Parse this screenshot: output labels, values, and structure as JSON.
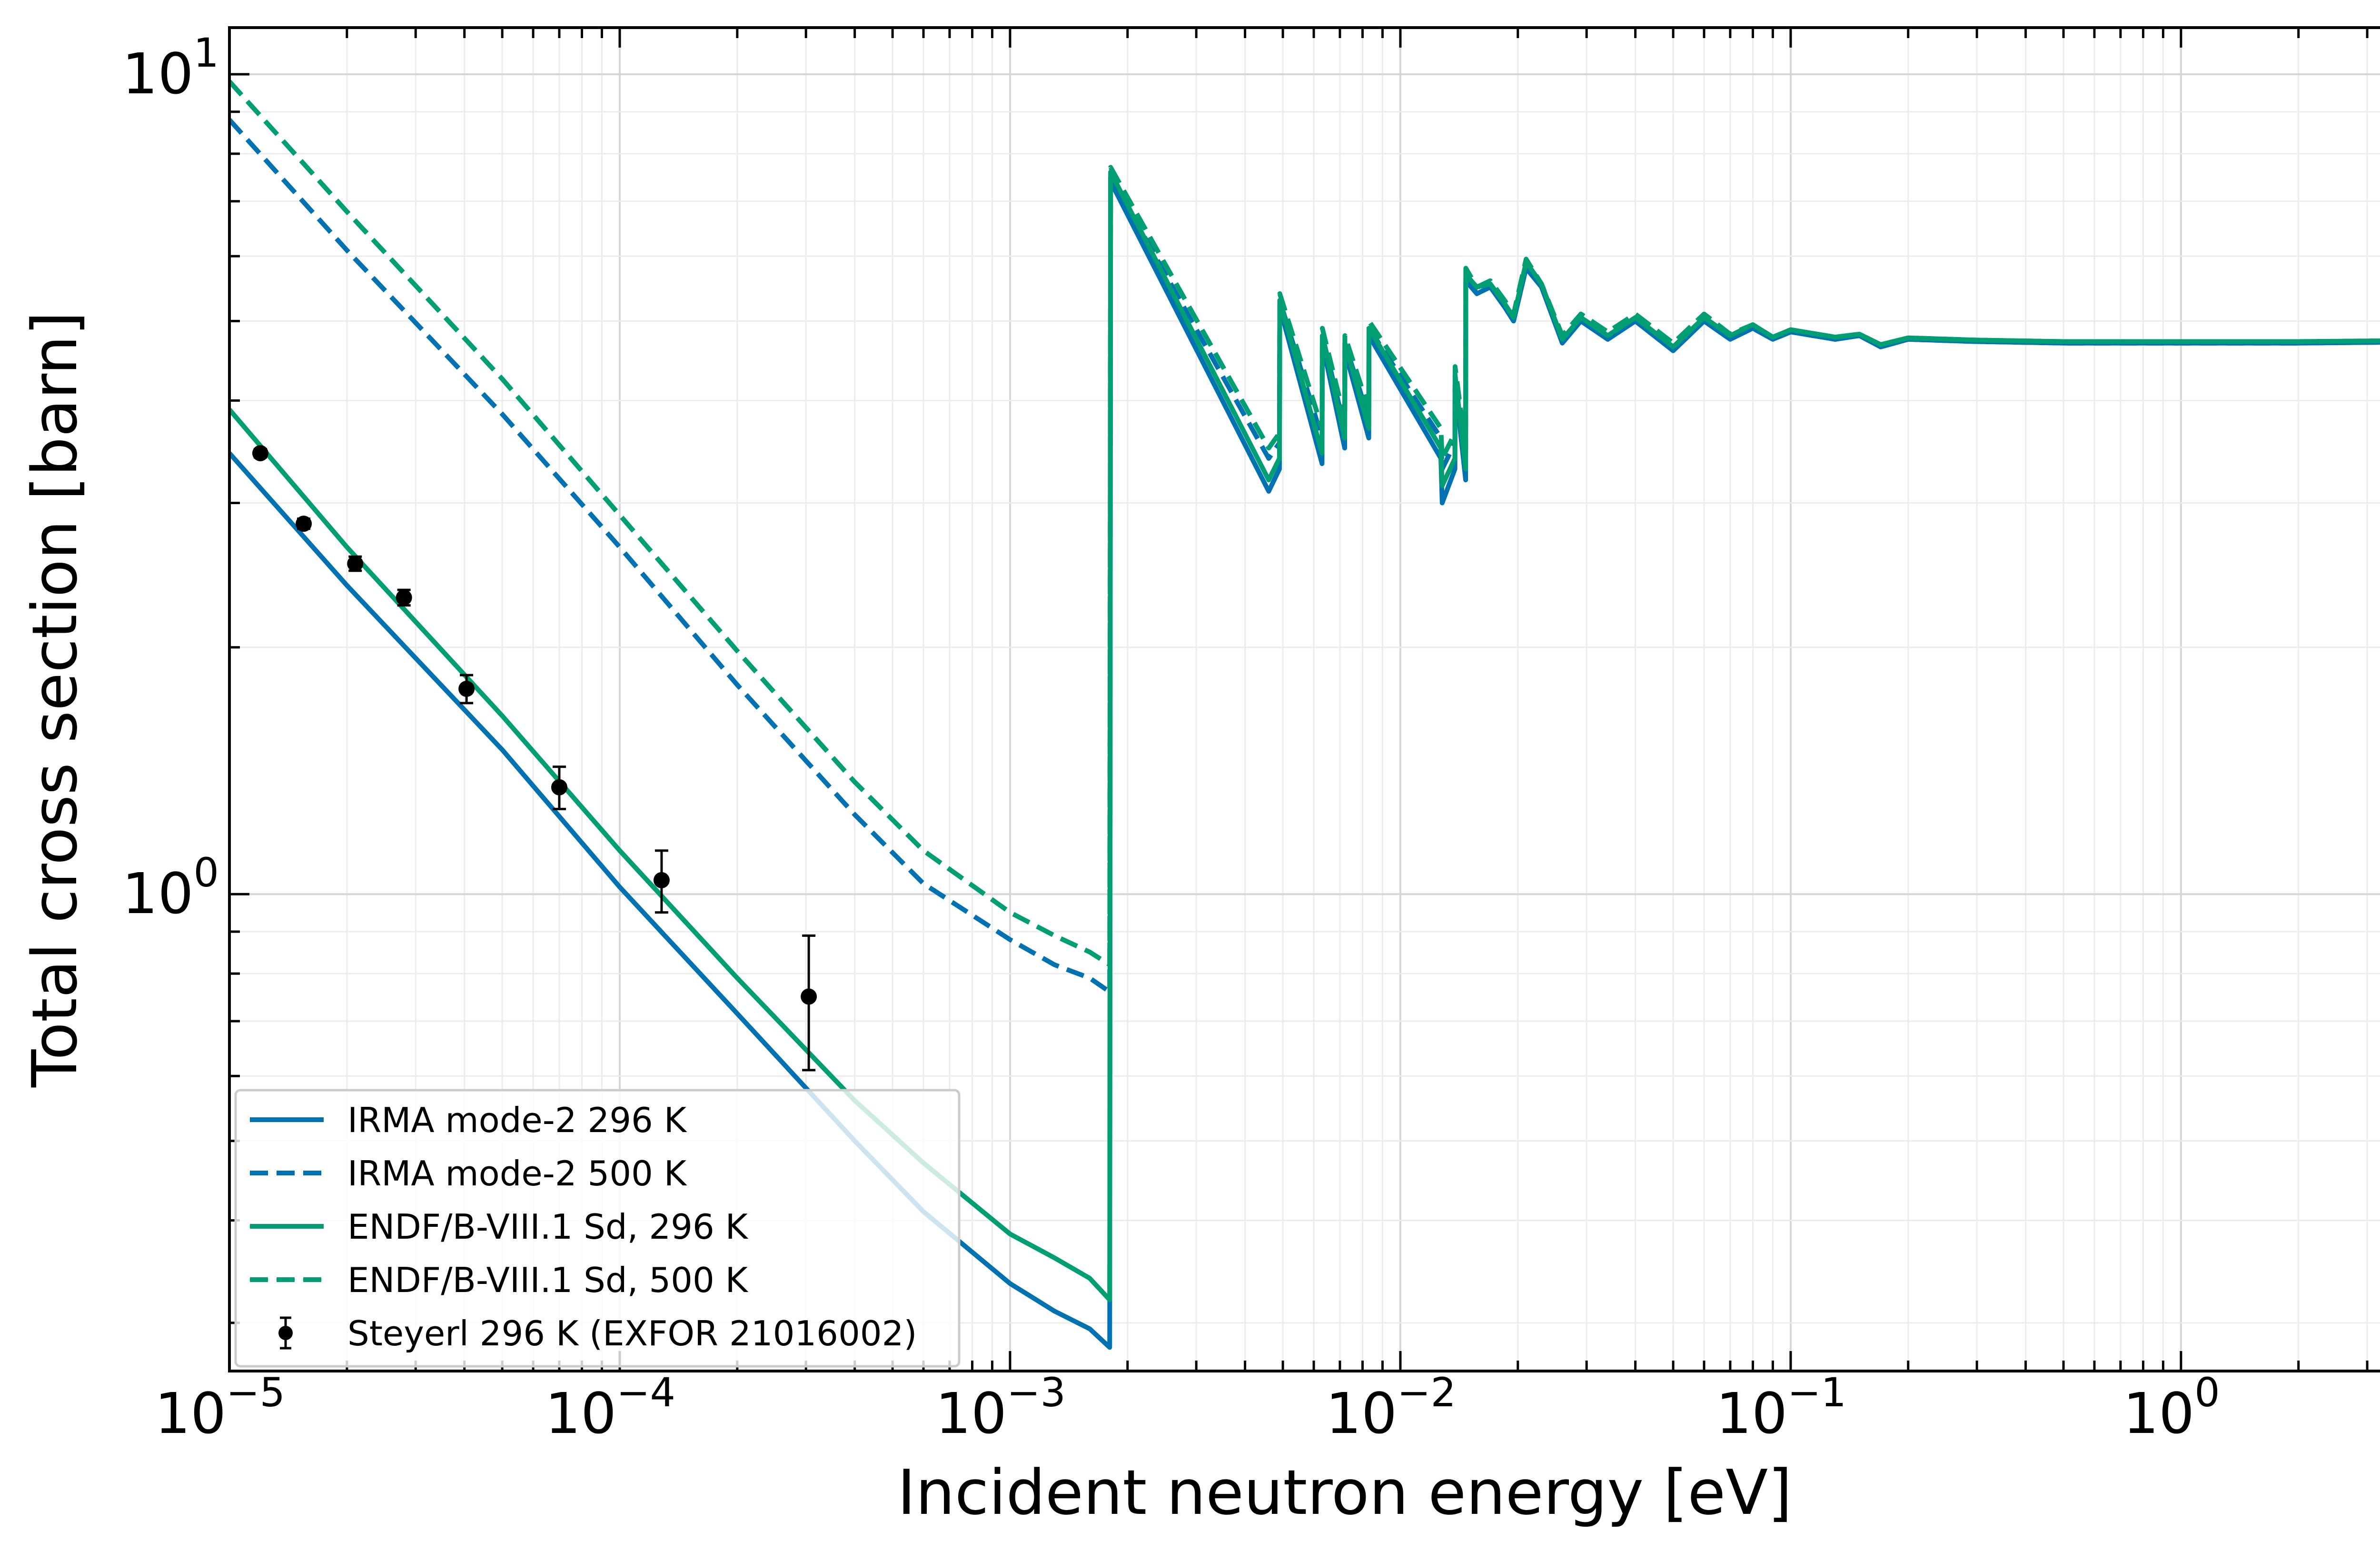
{
  "chart_data": {
    "type": "line",
    "title": "",
    "xlabel": "Incident neutron energy [eV]",
    "ylabel": "Total cross section [barn]",
    "xscale": "log",
    "yscale": "log",
    "xlim": [
      1e-05,
      5.2
    ],
    "ylim": [
      0.262,
      11.4
    ],
    "grid": "on (major and minor)",
    "legend_position": "lower-left",
    "x_ticks": [
      {
        "base": "10",
        "exp": "−5"
      },
      {
        "base": "10",
        "exp": "−4"
      },
      {
        "base": "10",
        "exp": "−3"
      },
      {
        "base": "10",
        "exp": "−2"
      },
      {
        "base": "10",
        "exp": "−1"
      },
      {
        "base": "10",
        "exp": "0"
      }
    ],
    "y_ticks": [
      {
        "base": "10",
        "exp": "0"
      },
      {
        "base": "10",
        "exp": "1"
      }
    ],
    "series": [
      {
        "name": "IRMA mode-2 296 K",
        "color": "#0072B2",
        "style": "solid",
        "x": [
          1e-05,
          2e-05,
          5e-05,
          0.0001,
          0.0002,
          0.0004,
          0.0006,
          0.001,
          0.0013,
          0.0016,
          0.0018,
          0.00181,
          0.0046,
          0.0049,
          0.00491,
          0.0063,
          0.00631,
          0.0072,
          0.00721,
          0.0083,
          0.00831,
          0.0127,
          0.0128,
          0.0138,
          0.01381,
          0.0147,
          0.01471,
          0.0157,
          0.017,
          0.0185,
          0.0195,
          0.021,
          0.023,
          0.026,
          0.029,
          0.034,
          0.04,
          0.05,
          0.06,
          0.07,
          0.08,
          0.09,
          0.1,
          0.13,
          0.15,
          0.17,
          0.2,
          0.3,
          0.5,
          1.0,
          2.0,
          5.2
        ],
        "y": [
          3.45,
          2.38,
          1.5,
          1.02,
          0.715,
          0.5,
          0.41,
          0.335,
          0.31,
          0.295,
          0.28,
          7.4,
          3.1,
          3.3,
          5.2,
          3.35,
          4.7,
          3.5,
          4.6,
          3.6,
          4.8,
          3.4,
          3.0,
          3.3,
          4.2,
          3.2,
          5.6,
          5.4,
          5.5,
          5.2,
          5.0,
          5.8,
          5.5,
          4.7,
          5.0,
          4.75,
          5.0,
          4.6,
          5.0,
          4.75,
          4.9,
          4.75,
          4.85,
          4.75,
          4.8,
          4.65,
          4.75,
          4.72,
          4.7,
          4.7,
          4.7,
          4.72
        ]
      },
      {
        "name": "IRMA mode-2 500 K",
        "color": "#0072B2",
        "style": "dashed",
        "x": [
          1e-05,
          2e-05,
          5e-05,
          0.0001,
          0.0002,
          0.0004,
          0.0006,
          0.001,
          0.0013,
          0.0016,
          0.0018,
          0.00181,
          0.0046,
          0.0049,
          0.00491,
          0.0063,
          0.00631,
          0.0072,
          0.00721,
          0.0083,
          0.00831,
          0.0127,
          0.0128,
          0.0138,
          0.01381,
          0.0147,
          0.01471,
          0.0157,
          0.017,
          0.0185,
          0.0195,
          0.021,
          0.023,
          0.026,
          0.029,
          0.034,
          0.04,
          0.05,
          0.06,
          0.07,
          0.08,
          0.09,
          0.1,
          0.13,
          0.15,
          0.17,
          0.2,
          0.3,
          0.5,
          1.0,
          2.0,
          5.2
        ],
        "y": [
          8.8,
          6.1,
          3.85,
          2.65,
          1.8,
          1.25,
          1.03,
          0.88,
          0.82,
          0.79,
          0.76,
          7.5,
          3.4,
          3.55,
          5.3,
          3.6,
          4.8,
          3.7,
          4.7,
          3.8,
          4.9,
          3.6,
          3.3,
          3.55,
          4.3,
          3.4,
          5.7,
          5.4,
          5.55,
          5.25,
          5.05,
          5.85,
          5.5,
          4.75,
          5.05,
          4.8,
          5.05,
          4.65,
          5.05,
          4.8,
          4.9,
          4.75,
          4.85,
          4.75,
          4.8,
          4.65,
          4.75,
          4.72,
          4.7,
          4.7,
          4.7,
          4.72
        ]
      },
      {
        "name": "ENDF/B-VIII.1 Sd, 296 K",
        "color": "#009E73",
        "style": "solid",
        "x": [
          1e-05,
          2e-05,
          5e-05,
          0.0001,
          0.0002,
          0.0004,
          0.0006,
          0.001,
          0.0013,
          0.0016,
          0.0018,
          0.00181,
          0.0046,
          0.0049,
          0.00491,
          0.0063,
          0.00631,
          0.0072,
          0.00721,
          0.0083,
          0.00831,
          0.0127,
          0.0128,
          0.0138,
          0.01381,
          0.0147,
          0.01471,
          0.0157,
          0.017,
          0.0185,
          0.0195,
          0.021,
          0.023,
          0.026,
          0.029,
          0.034,
          0.04,
          0.05,
          0.06,
          0.07,
          0.08,
          0.09,
          0.1,
          0.13,
          0.15,
          0.17,
          0.2,
          0.3,
          0.5,
          1.0,
          2.0,
          5.2
        ],
        "y": [
          3.9,
          2.65,
          1.65,
          1.13,
          0.79,
          0.56,
          0.47,
          0.385,
          0.36,
          0.34,
          0.32,
          7.6,
          3.2,
          3.4,
          5.3,
          3.45,
          4.8,
          3.6,
          4.7,
          3.7,
          4.9,
          3.5,
          3.15,
          3.4,
          4.3,
          3.3,
          5.7,
          5.5,
          5.55,
          5.25,
          5.05,
          5.9,
          5.55,
          4.75,
          5.05,
          4.8,
          5.05,
          4.65,
          5.05,
          4.8,
          4.95,
          4.78,
          4.88,
          4.78,
          4.82,
          4.68,
          4.77,
          4.74,
          4.72,
          4.72,
          4.72,
          4.74
        ]
      },
      {
        "name": "ENDF/B-VIII.1 Sd, 500 K",
        "color": "#009E73",
        "style": "dashed",
        "x": [
          1e-05,
          2e-05,
          5e-05,
          0.0001,
          0.0002,
          0.0004,
          0.0006,
          0.001,
          0.0013,
          0.0016,
          0.0018,
          0.00181,
          0.0046,
          0.0049,
          0.00491,
          0.0063,
          0.00631,
          0.0072,
          0.00721,
          0.0083,
          0.00831,
          0.0127,
          0.0128,
          0.0138,
          0.01381,
          0.0147,
          0.01471,
          0.0157,
          0.017,
          0.0185,
          0.0195,
          0.021,
          0.023,
          0.026,
          0.029,
          0.034,
          0.04,
          0.05,
          0.06,
          0.07,
          0.08,
          0.09,
          0.1,
          0.13,
          0.15,
          0.17,
          0.2,
          0.3,
          0.5,
          1.0,
          2.0,
          5.2
        ],
        "y": [
          9.8,
          6.8,
          4.25,
          2.9,
          1.98,
          1.37,
          1.13,
          0.95,
          0.89,
          0.85,
          0.82,
          7.7,
          3.5,
          3.65,
          5.4,
          3.7,
          4.9,
          3.8,
          4.8,
          3.9,
          5.0,
          3.7,
          3.4,
          3.65,
          4.4,
          3.5,
          5.8,
          5.5,
          5.6,
          5.3,
          5.1,
          5.95,
          5.55,
          4.8,
          5.1,
          4.85,
          5.1,
          4.7,
          5.1,
          4.82,
          4.95,
          4.78,
          4.88,
          4.78,
          4.82,
          4.68,
          4.77,
          4.74,
          4.72,
          4.72,
          4.72,
          4.74
        ]
      },
      {
        "name": "Steyerl 296 K (EXFOR 21016002)",
        "color": "#000000",
        "style": "points",
        "x": [
          1.2e-05,
          1.55e-05,
          2.1e-05,
          2.8e-05,
          4.05e-05,
          7e-05,
          0.000128,
          0.000305
        ],
        "y": [
          3.45,
          2.83,
          2.53,
          2.3,
          1.78,
          1.35,
          1.04,
          0.75
        ],
        "yerr": [
          0.04,
          0.04,
          0.05,
          0.05,
          0.07,
          0.08,
          0.09,
          0.14
        ]
      }
    ]
  }
}
